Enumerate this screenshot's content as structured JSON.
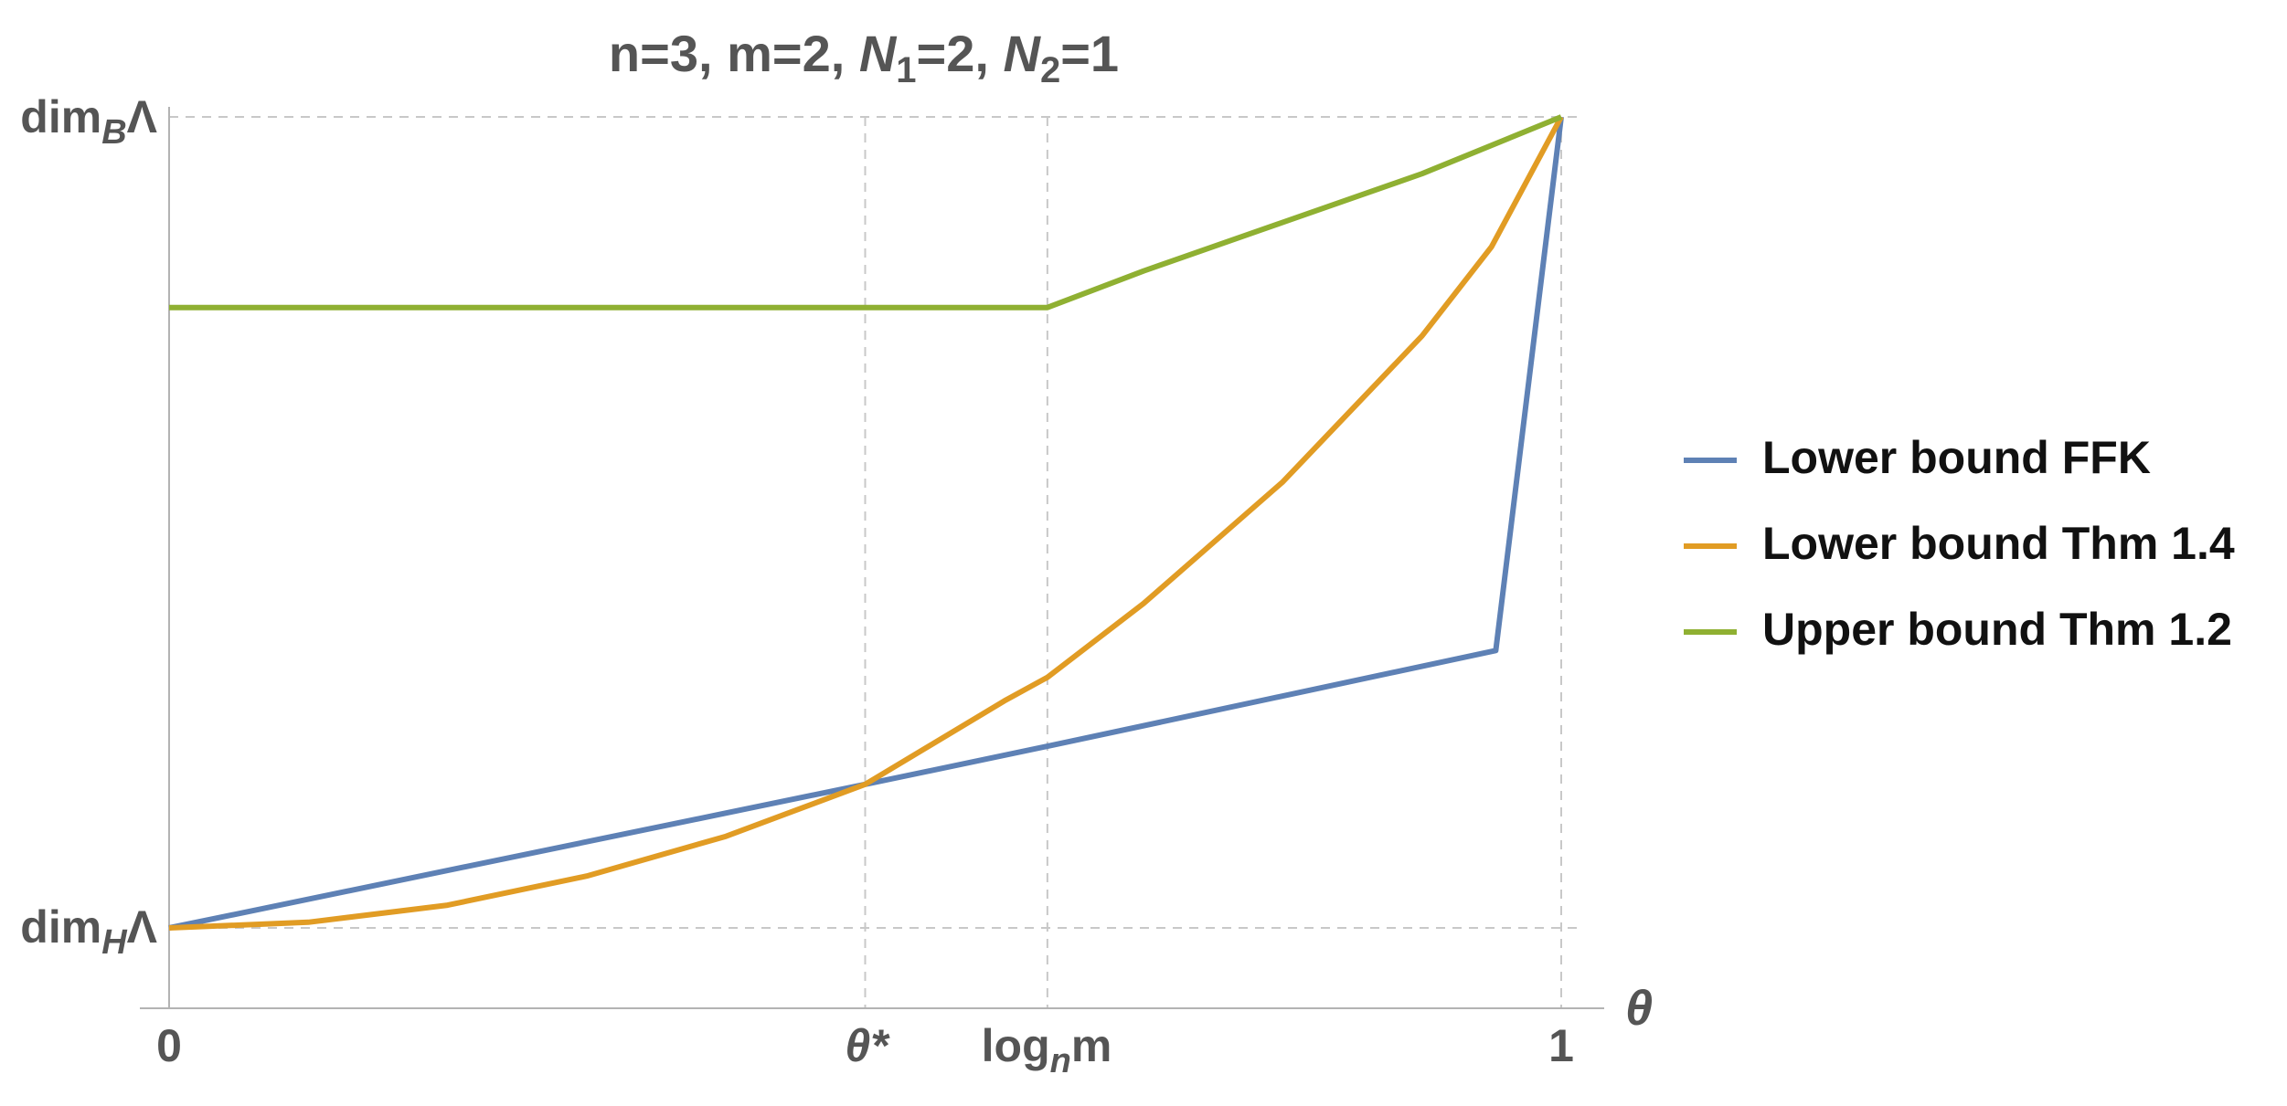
{
  "chart_data": {
    "type": "line",
    "title": {
      "pre": "n=3, m=2, ",
      "n1": "N",
      "n1sub": "1",
      "n1val": "=2, ",
      "n2": "N",
      "n2sub": "2",
      "n2val": "=1"
    },
    "xlabel": "θ",
    "xlim": [
      0,
      1
    ],
    "ylim": [
      0,
      1
    ],
    "x_ticks": [
      {
        "x": 0,
        "label": "0"
      },
      {
        "x": 0.5,
        "label": "θ*"
      },
      {
        "x": 0.6309,
        "label_pre": "log",
        "label_sub": "n",
        "label_post": "m"
      },
      {
        "x": 1,
        "label": "1"
      }
    ],
    "y_ticks": [
      {
        "y": 0,
        "label_pre": "dim",
        "label_sub": "H",
        "label_post": "Λ"
      },
      {
        "y": 1,
        "label_pre": "dim",
        "label_sub": "B",
        "label_post": "Λ"
      }
    ],
    "gridlines_x": [
      0.5,
      0.6309,
      1
    ],
    "gridlines_y": [
      0,
      1
    ],
    "legend_position": "right",
    "series": [
      {
        "name": "Lower bound FFK",
        "color": "#5E81B5",
        "x": [
          0,
          0.5,
          0.6309,
          0.953,
          1
        ],
        "y": [
          0,
          0.177,
          0.224,
          0.342,
          1
        ]
      },
      {
        "name": "Lower bound Thm 1.4",
        "color": "#E19C24",
        "x": [
          0,
          0.1,
          0.2,
          0.3,
          0.4,
          0.5,
          0.6,
          0.6309,
          0.7,
          0.8,
          0.9,
          0.95,
          1
        ],
        "y": [
          0,
          0.007,
          0.028,
          0.064,
          0.113,
          0.177,
          0.28,
          0.309,
          0.4,
          0.55,
          0.73,
          0.84,
          1
        ]
      },
      {
        "name": "Upper bound Thm 1.2",
        "color": "#8FB032",
        "x": [
          0,
          0.5,
          0.6309,
          0.7,
          0.8,
          0.9,
          1
        ],
        "y": [
          0.765,
          0.765,
          0.765,
          0.81,
          0.87,
          0.93,
          1
        ]
      }
    ]
  }
}
